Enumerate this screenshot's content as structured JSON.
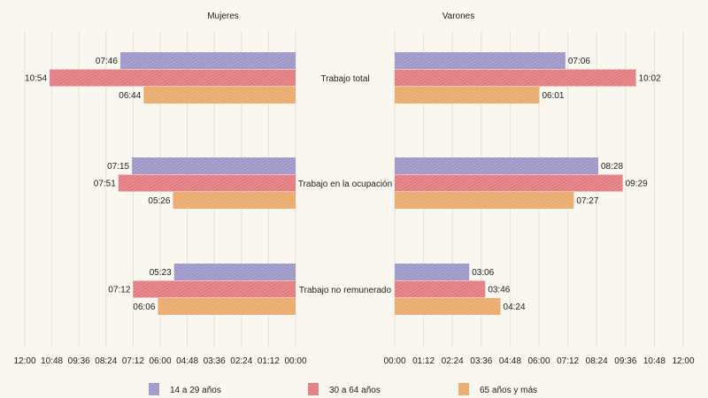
{
  "chart_data": {
    "type": "bar",
    "orientation": "horizontal",
    "panels": [
      "Mujeres",
      "Varones"
    ],
    "categories": [
      "Trabajo total",
      "Trabajo en la ocupación",
      "Trabajo no remunerado"
    ],
    "series": [
      {
        "name": "14 a 29 años",
        "color": "#9d97c8",
        "Mujeres": [
          "07:46",
          "07:15",
          "05:23"
        ],
        "Varones": [
          "07:06",
          "08:28",
          "03:06"
        ]
      },
      {
        "name": "30 a 64 años",
        "color": "#e27c80",
        "Mujeres": [
          "10:54",
          "07:51",
          "07:12"
        ],
        "Varones": [
          "10:02",
          "09:29",
          "03:46"
        ]
      },
      {
        "name": "65 años y más",
        "color": "#e9aa6c",
        "Mujeres": [
          "06:44",
          "05:26",
          "06:06"
        ],
        "Varones": [
          "06:01",
          "07:27",
          "04:24"
        ]
      }
    ],
    "xlim": [
      "00:00",
      "12:00"
    ],
    "xticks": [
      "00:00",
      "01:12",
      "02:24",
      "03:36",
      "04:48",
      "06:00",
      "07:12",
      "08:24",
      "09:36",
      "10:48",
      "12:00"
    ],
    "left_axis_reversed": true,
    "grid": true,
    "legend": "bottom"
  }
}
